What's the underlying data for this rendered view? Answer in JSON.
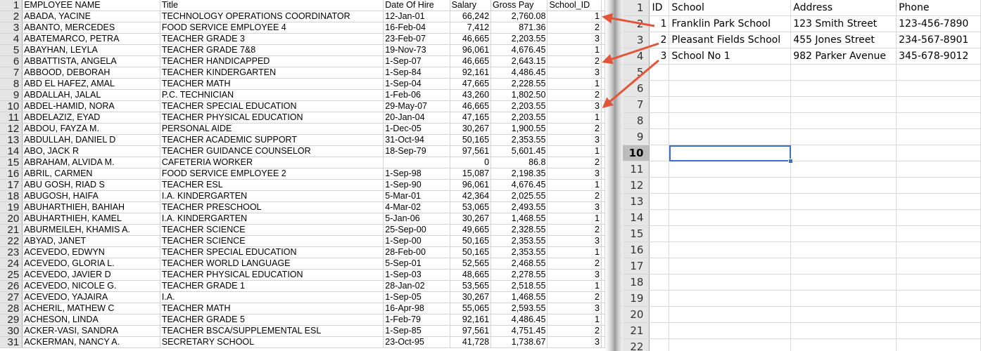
{
  "left_sheet": {
    "headers": [
      "EMPLOYEE NAME",
      "Title",
      "Date Of Hire",
      "Salary",
      "Gross Pay",
      "School_ID"
    ],
    "rows": [
      [
        "ABADA, YACINE",
        "TECHNOLOGY OPERATIONS COORDINATOR",
        "12-Jan-01",
        "66,242",
        "2,760.08",
        "1"
      ],
      [
        "ABANTO, MERCEDES",
        "FOOD SERVICE EMPLOYEE 4",
        "16-Feb-04",
        "7,412",
        "871.36",
        "2"
      ],
      [
        "ABATEMARCO, PETRA",
        "TEACHER GRADE 3",
        "23-Feb-07",
        "46,665",
        "2,203.55",
        "3"
      ],
      [
        "ABAYHAN, LEYLA",
        "TEACHER GRADE 7&8",
        "19-Nov-73",
        "96,061",
        "4,676.45",
        "1"
      ],
      [
        "ABBATTISTA, ANGELA",
        "TEACHER HANDICAPPED",
        "1-Sep-07",
        "46,665",
        "2,643.15",
        "2"
      ],
      [
        "ABBOOD, DEBORAH",
        "TEACHER KINDERGARTEN",
        "1-Sep-84",
        "92,161",
        "4,486.45",
        "3"
      ],
      [
        "ABD EL HAFEZ, AMAL",
        "TEACHER MATH",
        "1-Sep-04",
        "47,665",
        "2,228.55",
        "1"
      ],
      [
        "ABDALLAH, JALAL",
        "P.C. TECHNICIAN",
        "1-Feb-06",
        "43,260",
        "1,802.50",
        "2"
      ],
      [
        "ABDEL-HAMID, NORA",
        "TEACHER SPECIAL EDUCATION",
        "29-May-07",
        "46,665",
        "2,203.55",
        "3"
      ],
      [
        "ABDELAZIZ, EYAD",
        "TEACHER PHYSICAL EDUCATION",
        "20-Jan-04",
        "47,165",
        "2,203.55",
        "1"
      ],
      [
        "ABDOU, FAYZA M.",
        "PERSONAL AIDE",
        "1-Dec-05",
        "30,267",
        "1,900.55",
        "2"
      ],
      [
        "ABDULLAH, DANIEL D",
        "TEACHER ACADEMIC SUPPORT",
        "31-Oct-94",
        "50,165",
        "2,353.55",
        "3"
      ],
      [
        "ABO, JACK R",
        "TEACHER GUIDANCE COUNSELOR",
        "18-Sep-79",
        "97,561",
        "5,601.45",
        "1"
      ],
      [
        "ABRAHAM, ALVIDA M.",
        "CAFETERIA WORKER",
        "",
        "0",
        "86.8",
        "2"
      ],
      [
        "ABRIL, CARMEN",
        "FOOD SERVICE EMPLOYEE 2",
        "1-Sep-98",
        "15,087",
        "2,198.35",
        "3"
      ],
      [
        "ABU GOSH, RIAD S",
        "TEACHER ESL",
        "1-Sep-90",
        "96,061",
        "4,676.45",
        "1"
      ],
      [
        "ABUGOSH, HAIFA",
        "I.A. KINDERGARTEN",
        "5-Mar-01",
        "42,364",
        "2,025.55",
        "2"
      ],
      [
        "ABUHARTHIEH, BAHIAH",
        "TEACHER PRESCHOOL",
        "4-Mar-02",
        "53,065",
        "2,493.55",
        "3"
      ],
      [
        "ABUHARTHIEH, KAMEL",
        "I.A. KINDERGARTEN",
        "5-Jan-06",
        "30,267",
        "1,468.55",
        "1"
      ],
      [
        "ABURMEILEH, KHAMIS A.",
        "TEACHER SCIENCE",
        "25-Sep-00",
        "49,665",
        "2,328.55",
        "2"
      ],
      [
        "ABYAD, JANET",
        "TEACHER SCIENCE",
        "1-Sep-00",
        "50,165",
        "2,353.55",
        "3"
      ],
      [
        "ACEVEDO, EDWYN",
        "TEACHER SPECIAL EDUCATION",
        "28-Feb-00",
        "50,165",
        "2,353.55",
        "1"
      ],
      [
        "ACEVEDO, GLORIA L.",
        "TEACHER WORLD LANGUAGE",
        "5-Sep-01",
        "52,565",
        "2,468.55",
        "2"
      ],
      [
        "ACEVEDO, JAVIER D",
        "TEACHER PHYSICAL EDUCATION",
        "1-Sep-03",
        "48,665",
        "2,278.55",
        "3"
      ],
      [
        "ACEVEDO, NICOLE G.",
        "TEACHER GRADE 1",
        "28-Jan-02",
        "53,565",
        "2,518.55",
        "1"
      ],
      [
        "ACEVEDO, YAJAIRA",
        "I.A.",
        "1-Sep-05",
        "30,267",
        "1,468.55",
        "2"
      ],
      [
        "ACHERIL, MATHEW C",
        "TEACHER MATH",
        "16-Apr-98",
        "55,065",
        "2,593.55",
        "3"
      ],
      [
        "ACHESON, LINDA",
        "TEACHER GRADE 5",
        "1-Feb-79",
        "92,161",
        "4,486.45",
        "1"
      ],
      [
        "ACKER-VASI, SANDRA",
        "TEACHER BSCA/SUPPLEMENTAL ESL",
        "1-Sep-85",
        "97,561",
        "4,751.45",
        "2"
      ],
      [
        "ACKERMAN, NANCY A.",
        "SECRETARY SCHOOL",
        "23-Oct-95",
        "41,728",
        "1,738.67",
        "3"
      ]
    ]
  },
  "right_sheet": {
    "headers": [
      "ID",
      "School",
      "Address",
      "Phone"
    ],
    "rows": [
      [
        "1",
        "Franklin Park School",
        "123 Smith Street",
        "123-456-7890"
      ],
      [
        "2",
        "Pleasant Fields School",
        "455 Jones Street",
        "234-567-8901"
      ],
      [
        "3",
        "School No 1",
        "982 Parker Avenue",
        "345-678-9012"
      ]
    ],
    "selected_row": 10
  },
  "colors": {
    "arrow": "#e2553a",
    "selection": "#3b6fc9"
  }
}
